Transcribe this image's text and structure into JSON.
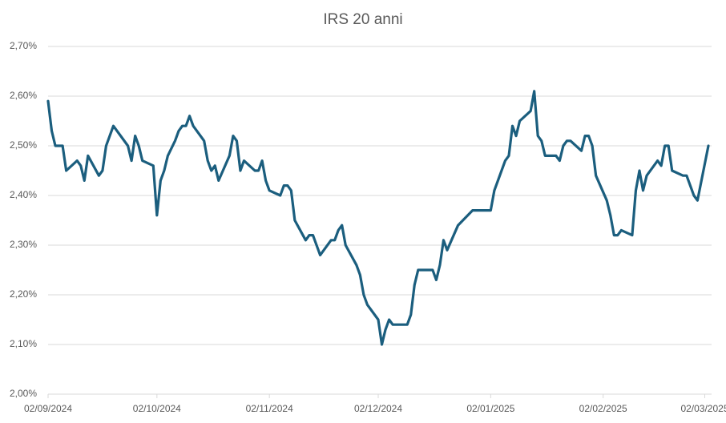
{
  "chart_data": {
    "type": "line",
    "title": "IRS 20 anni",
    "x": [
      "02/09/2024",
      "03/09/2024",
      "04/09/2024",
      "06/09/2024",
      "07/09/2024",
      "10/09/2024",
      "11/09/2024",
      "12/09/2024",
      "13/09/2024",
      "16/09/2024",
      "17/09/2024",
      "18/09/2024",
      "20/09/2024",
      "24/09/2024",
      "25/09/2024",
      "26/09/2024",
      "27/09/2024",
      "28/09/2024",
      "01/10/2024",
      "02/10/2024",
      "03/10/2024",
      "04/10/2024",
      "05/10/2024",
      "07/10/2024",
      "08/10/2024",
      "09/10/2024",
      "10/10/2024",
      "11/10/2024",
      "12/10/2024",
      "15/10/2024",
      "16/10/2024",
      "17/10/2024",
      "18/10/2024",
      "19/10/2024",
      "22/10/2024",
      "23/10/2024",
      "24/10/2024",
      "25/10/2024",
      "26/10/2024",
      "29/10/2024",
      "30/10/2024",
      "31/10/2024",
      "01/11/2024",
      "02/11/2024",
      "05/11/2024",
      "06/11/2024",
      "07/11/2024",
      "08/11/2024",
      "09/11/2024",
      "12/11/2024",
      "13/11/2024",
      "14/11/2024",
      "15/11/2024",
      "16/11/2024",
      "19/11/2024",
      "20/11/2024",
      "21/11/2024",
      "22/11/2024",
      "23/11/2024",
      "26/11/2024",
      "27/11/2024",
      "28/11/2024",
      "29/11/2024",
      "02/12/2024",
      "03/12/2024",
      "04/12/2024",
      "05/12/2024",
      "06/12/2024",
      "07/12/2024",
      "10/12/2024",
      "11/12/2024",
      "12/12/2024",
      "13/12/2024",
      "14/12/2024",
      "17/12/2024",
      "18/12/2024",
      "19/12/2024",
      "20/12/2024",
      "21/12/2024",
      "24/12/2024",
      "28/12/2024",
      "02/01/2025",
      "03/01/2025",
      "06/01/2025",
      "07/01/2025",
      "08/01/2025",
      "09/01/2025",
      "10/01/2025",
      "13/01/2025",
      "14/01/2025",
      "15/01/2025",
      "16/01/2025",
      "17/01/2025",
      "20/01/2025",
      "21/01/2025",
      "22/01/2025",
      "23/01/2025",
      "24/01/2025",
      "27/01/2025",
      "28/01/2025",
      "29/01/2025",
      "30/01/2025",
      "31/01/2025",
      "03/02/2025",
      "04/02/2025",
      "05/02/2025",
      "06/02/2025",
      "07/02/2025",
      "10/02/2025",
      "11/02/2025",
      "12/02/2025",
      "13/02/2025",
      "14/02/2025",
      "17/02/2025",
      "18/02/2025",
      "19/02/2025",
      "20/02/2025",
      "21/02/2025",
      "24/02/2025",
      "25/02/2025",
      "26/02/2025",
      "27/02/2025",
      "28/02/2025",
      "03/03/2025"
    ],
    "series": [
      {
        "name": "IRS 20 anni",
        "color": "#1b5e7e",
        "values": [
          2.59,
          2.53,
          2.5,
          2.5,
          2.45,
          2.47,
          2.46,
          2.43,
          2.48,
          2.44,
          2.45,
          2.5,
          2.54,
          2.5,
          2.47,
          2.52,
          2.5,
          2.47,
          2.46,
          2.36,
          2.43,
          2.45,
          2.48,
          2.51,
          2.53,
          2.54,
          2.54,
          2.56,
          2.54,
          2.51,
          2.47,
          2.45,
          2.46,
          2.43,
          2.48,
          2.52,
          2.51,
          2.45,
          2.47,
          2.45,
          2.45,
          2.47,
          2.43,
          2.41,
          2.4,
          2.42,
          2.42,
          2.41,
          2.35,
          2.31,
          2.32,
          2.32,
          2.3,
          2.28,
          2.31,
          2.31,
          2.33,
          2.34,
          2.3,
          2.26,
          2.24,
          2.2,
          2.18,
          2.15,
          2.1,
          2.13,
          2.15,
          2.14,
          2.14,
          2.14,
          2.16,
          2.22,
          2.25,
          2.25,
          2.25,
          2.23,
          2.26,
          2.31,
          2.29,
          2.34,
          2.37,
          2.37,
          2.41,
          2.47,
          2.48,
          2.54,
          2.52,
          2.55,
          2.57,
          2.61,
          2.52,
          2.51,
          2.48,
          2.48,
          2.47,
          2.5,
          2.51,
          2.51,
          2.49,
          2.52,
          2.52,
          2.5,
          2.44,
          2.39,
          2.36,
          2.32,
          2.32,
          2.33,
          2.32,
          2.41,
          2.45,
          2.41,
          2.44,
          2.47,
          2.46,
          2.5,
          2.5,
          2.45,
          2.44,
          2.44,
          2.42,
          2.4,
          2.39,
          2.5
        ]
      }
    ],
    "xlim": [
      "02/09/2024",
      "03/03/2025"
    ],
    "xticks": [
      "02/09/2024",
      "02/10/2024",
      "02/11/2024",
      "02/12/2024",
      "02/01/2025",
      "02/02/2025",
      "02/03/2025"
    ],
    "ylim": [
      2.0,
      2.7
    ],
    "yticks": [
      {
        "value": 2.0,
        "label": "2,00%"
      },
      {
        "value": 2.1,
        "label": "2,10%"
      },
      {
        "value": 2.2,
        "label": "2,20%"
      },
      {
        "value": 2.3,
        "label": "2,30%"
      },
      {
        "value": 2.4,
        "label": "2,40%"
      },
      {
        "value": 2.5,
        "label": "2,50%"
      },
      {
        "value": 2.6,
        "label": "2,60%"
      },
      {
        "value": 2.7,
        "label": "2,70%"
      }
    ],
    "grid": true
  }
}
